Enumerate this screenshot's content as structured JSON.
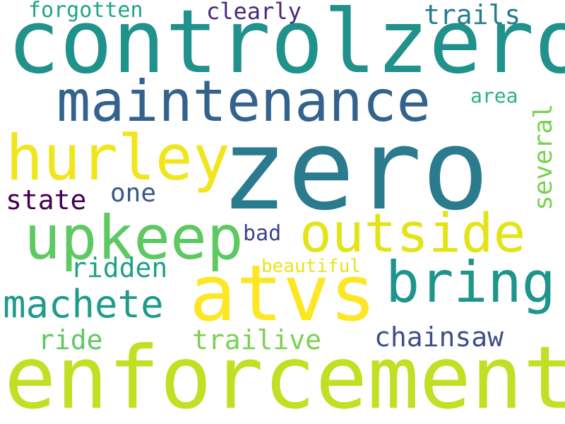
{
  "words": [
    {
      "id": "zero",
      "text": "zero",
      "color": "#2a7b8e"
    },
    {
      "id": "controlzero",
      "text": "controlzero",
      "color": "#21918c"
    },
    {
      "id": "enforcement",
      "text": "enforcement",
      "color": "#c2df23"
    },
    {
      "id": "maintenance",
      "text": "maintenance",
      "color": "#33628d"
    },
    {
      "id": "atvs",
      "text": "atvs",
      "color": "#fde725"
    },
    {
      "id": "hurley",
      "text": "hurley",
      "color": "#f1e51d"
    },
    {
      "id": "upkeep",
      "text": "upkeep",
      "color": "#5ec962"
    },
    {
      "id": "outside",
      "text": "outside",
      "color": "#e2e418"
    },
    {
      "id": "bring",
      "text": "bring",
      "color": "#1f948c"
    },
    {
      "id": "machete",
      "text": "machete",
      "color": "#1e9b8a"
    },
    {
      "id": "chainsaw",
      "text": "chainsaw",
      "color": "#3d4e8a"
    },
    {
      "id": "trailive",
      "text": "trailive",
      "color": "#7ad151"
    },
    {
      "id": "ride",
      "text": "ride",
      "color": "#5ec962"
    },
    {
      "id": "ridden",
      "text": "ridden",
      "color": "#1fa187"
    },
    {
      "id": "state",
      "text": "state",
      "color": "#440154"
    },
    {
      "id": "one",
      "text": "one",
      "color": "#38598c"
    },
    {
      "id": "bad",
      "text": "bad",
      "color": "#414487"
    },
    {
      "id": "beautiful",
      "text": "beautiful",
      "color": "#e8e419"
    },
    {
      "id": "several",
      "text": "several",
      "color": "#7ad151"
    },
    {
      "id": "area",
      "text": "area",
      "color": "#2db27d"
    },
    {
      "id": "trails",
      "text": "trails",
      "color": "#287c8e"
    },
    {
      "id": "clearly",
      "text": "clearly",
      "color": "#482878"
    },
    {
      "id": "forgotten",
      "text": "forgotten",
      "color": "#20a486"
    }
  ]
}
